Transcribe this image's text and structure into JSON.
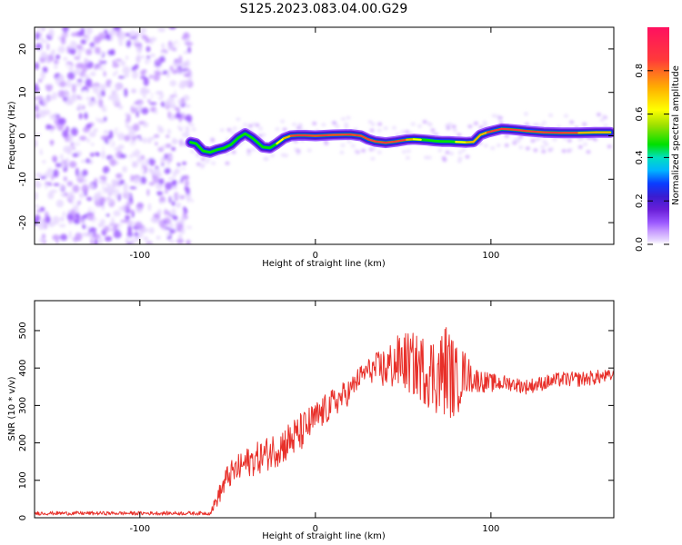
{
  "page_title": "S125.2023.083.04.00.G29",
  "colors": {
    "snr_line": "#e8302a",
    "colormap": [
      "#ffffff",
      "#e6d6ff",
      "#c79bff",
      "#9b59ff",
      "#6a1fd8",
      "#3a1cd0",
      "#0a3cff",
      "#00b4ff",
      "#00e0c0",
      "#00e000",
      "#a0e000",
      "#ffff00",
      "#ffb000",
      "#ff3a3a",
      "#ff1060"
    ]
  },
  "chart_data": [
    {
      "type": "heatmap",
      "xlabel": "Height of straight line (km)",
      "ylabel": "Frequency (Hz)",
      "xlim": [
        -160,
        170
      ],
      "ylim": [
        -25,
        25
      ],
      "x_ticks": [
        {
          "value": -100,
          "label": "-100"
        },
        {
          "value": 0,
          "label": "0"
        },
        {
          "value": 100,
          "label": "100"
        }
      ],
      "y_ticks": [
        {
          "value": 20,
          "label": "20"
        },
        {
          "value": 10,
          "label": "10"
        },
        {
          "value": 0,
          "label": "0"
        },
        {
          "value": -10,
          "label": "-10"
        },
        {
          "value": -20,
          "label": "-20"
        }
      ],
      "noise_region_x": [
        -160,
        -71
      ],
      "ridge": {
        "x": [
          -71,
          -68,
          -64,
          -60,
          -56,
          -52,
          -48,
          -44,
          -40,
          -36,
          -33,
          -30,
          -26,
          -22,
          -18,
          -14,
          -10,
          -6,
          0,
          10,
          20,
          26,
          30,
          34,
          40,
          46,
          52,
          56,
          60,
          64,
          68,
          72,
          76,
          80,
          86,
          90,
          94,
          98,
          102,
          106,
          110,
          116,
          120,
          130,
          140,
          150,
          160,
          168
        ],
        "y": [
          -1.5,
          -1.8,
          -3.5,
          -3.8,
          -3.2,
          -2.8,
          -2,
          -0.5,
          0.5,
          -0.5,
          -1.5,
          -2.6,
          -2.8,
          -1.8,
          -0.6,
          0,
          0.1,
          0.1,
          0,
          0.2,
          0.3,
          0,
          -0.8,
          -1.3,
          -1.6,
          -1.3,
          -0.9,
          -0.8,
          -0.9,
          -1,
          -1.2,
          -1.3,
          -1.3,
          -1.4,
          -1.5,
          -1.4,
          0.2,
          0.8,
          1.2,
          1.6,
          1.5,
          1.3,
          1.1,
          0.8,
          0.7,
          0.7,
          0.8,
          0.8
        ],
        "amplitude": [
          0.55,
          0.6,
          0.62,
          0.65,
          0.68,
          0.7,
          0.72,
          0.75,
          0.75,
          0.72,
          0.7,
          0.72,
          0.75,
          0.8,
          0.85,
          0.9,
          0.95,
          0.95,
          0.95,
          0.95,
          0.95,
          0.9,
          0.9,
          0.9,
          0.92,
          0.9,
          0.85,
          0.8,
          0.75,
          0.7,
          0.65,
          0.7,
          0.75,
          0.8,
          0.85,
          0.85,
          0.85,
          0.9,
          0.95,
          0.95,
          0.95,
          0.95,
          0.92,
          0.9,
          0.9,
          0.85,
          0.85,
          0.8
        ]
      },
      "colorbar": {
        "label": "Normalized spectral amplitude",
        "range": [
          0,
          1
        ],
        "ticks": [
          {
            "value": 0.0,
            "label": "0.0"
          },
          {
            "value": 0.2,
            "label": "0.2"
          },
          {
            "value": 0.4,
            "label": "0.4"
          },
          {
            "value": 0.6,
            "label": "0.6"
          },
          {
            "value": 0.8,
            "label": "0.8"
          }
        ]
      }
    },
    {
      "type": "line",
      "xlabel": "Height of straight line (km)",
      "ylabel": "SNR (10 * v/v)",
      "xlim": [
        -160,
        170
      ],
      "ylim": [
        0,
        580
      ],
      "x_ticks": [
        {
          "value": -100,
          "label": "-100"
        },
        {
          "value": 0,
          "label": "0"
        },
        {
          "value": 100,
          "label": "100"
        }
      ],
      "y_ticks": [
        {
          "value": 0,
          "label": "0"
        },
        {
          "value": 100,
          "label": "100"
        },
        {
          "value": 200,
          "label": "200"
        },
        {
          "value": 300,
          "label": "300"
        },
        {
          "value": 400,
          "label": "400"
        },
        {
          "value": 500,
          "label": "500"
        }
      ],
      "series": [
        {
          "envelope": {
            "x": [
              -160,
              -120,
              -80,
              -60,
              -55,
              -50,
              -40,
              -30,
              -20,
              -10,
              0,
              10,
              20,
              25,
              30,
              40,
              50,
              60,
              70,
              75,
              80,
              85,
              90,
              100,
              110,
              120,
              130,
              140,
              150,
              160,
              170
            ],
            "base": [
              12,
              12,
              12,
              12,
              60,
              110,
              145,
              165,
              190,
              220,
              265,
              305,
              340,
              375,
              395,
              400,
              420,
              400,
              380,
              400,
              360,
              390,
              370,
              360,
              360,
              350,
              360,
              370,
              370,
              375,
              380
            ],
            "noise": [
              5,
              5,
              5,
              5,
              25,
              35,
              40,
              45,
              50,
              55,
              45,
              40,
              35,
              30,
              30,
              60,
              80,
              90,
              110,
              130,
              100,
              60,
              35,
              25,
              20,
              20,
              20,
              20,
              20,
              20,
              15
            ]
          }
        }
      ]
    }
  ]
}
